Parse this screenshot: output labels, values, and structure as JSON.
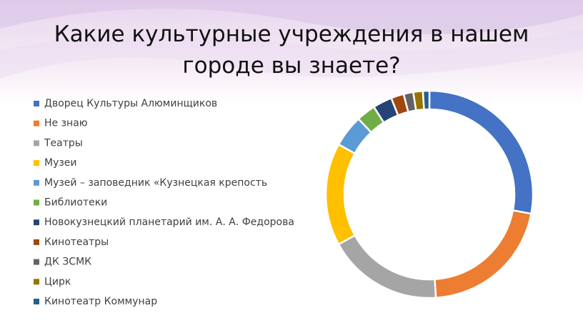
{
  "chart_data": {
    "type": "pie",
    "title": "Какие культурные учреждения в нашем городе вы знаете?",
    "categories": [
      "Дворец Культуры Алюминщиков",
      "Не знаю",
      "Театры",
      "Музеи",
      "Музей – заповедник «Кузнецкая крепость",
      "Библиотеки",
      "Новокузнецкий планетарий им. А. А. Федорова",
      "Кинотеатры",
      "ДК ЗСМК",
      " Цирк",
      "Кинотеатр Коммунар"
    ],
    "values": [
      28,
      21,
      18,
      16,
      5,
      3,
      3,
      2,
      1.5,
      1.5,
      1
    ],
    "colors": [
      "#4472c4",
      "#ed7d31",
      "#a5a5a5",
      "#ffc000",
      "#5b9bd5",
      "#70ad47",
      "#264478",
      "#9e480e",
      "#636363",
      "#997300",
      "#255e91"
    ],
    "donut": true,
    "legend": "left"
  }
}
